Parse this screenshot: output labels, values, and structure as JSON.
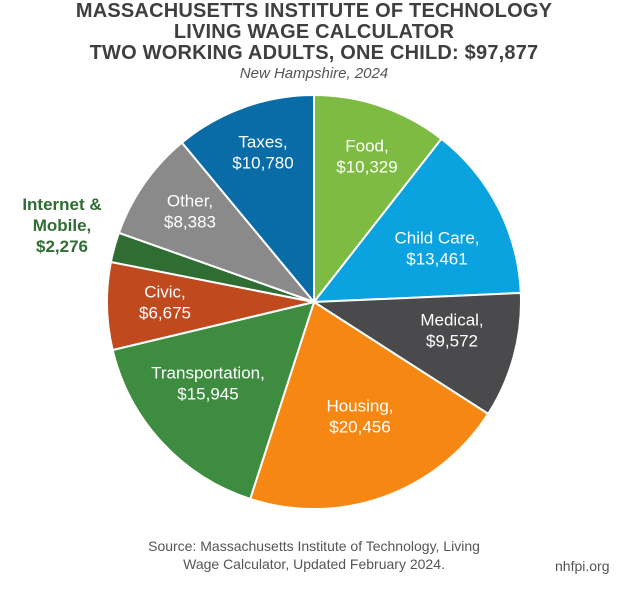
{
  "header": {
    "title_line1": "MASSACHUSETTS INSTITUTE OF TECHNOLOGY",
    "title_line2": "LIVING WAGE CALCULATOR",
    "title_line3": "TWO WORKING ADULTS, ONE CHILD: $97,877",
    "subtitle": "New Hampshire, 2024"
  },
  "chart_data": {
    "type": "pie",
    "title": "MASSACHUSETTS INSTITUTE OF TECHNOLOGY LIVING WAGE CALCULATOR TWO WORKING ADULTS, ONE CHILD: $97,877",
    "subtitle": "New Hampshire, 2024",
    "total": 97877,
    "slices": [
      {
        "label": "Food,",
        "value_label": "$10,329",
        "value": 10329,
        "color": "#7dbb42"
      },
      {
        "label": "Child Care,",
        "value_label": "$13,461",
        "value": 13461,
        "color": "#0aa3e0"
      },
      {
        "label": "Medical,",
        "value_label": "$9,572",
        "value": 9572,
        "color": "#4a4a4c"
      },
      {
        "label": "Housing,",
        "value_label": "$20,456",
        "value": 20456,
        "color": "#f68712"
      },
      {
        "label": "Transportation,",
        "value_label": "$15,945",
        "value": 15945,
        "color": "#3d8c40"
      },
      {
        "label": "Civic,",
        "value_label": "$6,675",
        "value": 6675,
        "color": "#c04a1d"
      },
      {
        "label": "Internet &",
        "label2": "Mobile,",
        "value_label": "$2,276",
        "value": 2276,
        "color": "#2f6d33"
      },
      {
        "label": "Other,",
        "value_label": "$8,383",
        "value": 8383,
        "color": "#8a8a8a"
      },
      {
        "label": "Taxes,",
        "value_label": "$10,780",
        "value": 10780,
        "color": "#0a6ca6"
      }
    ]
  },
  "footer": {
    "source_line1": "Source: Massachusetts Institute of Technology, Living",
    "source_line2": "Wage Calculator, Updated February 2024.",
    "site": "nhfpi.org"
  }
}
